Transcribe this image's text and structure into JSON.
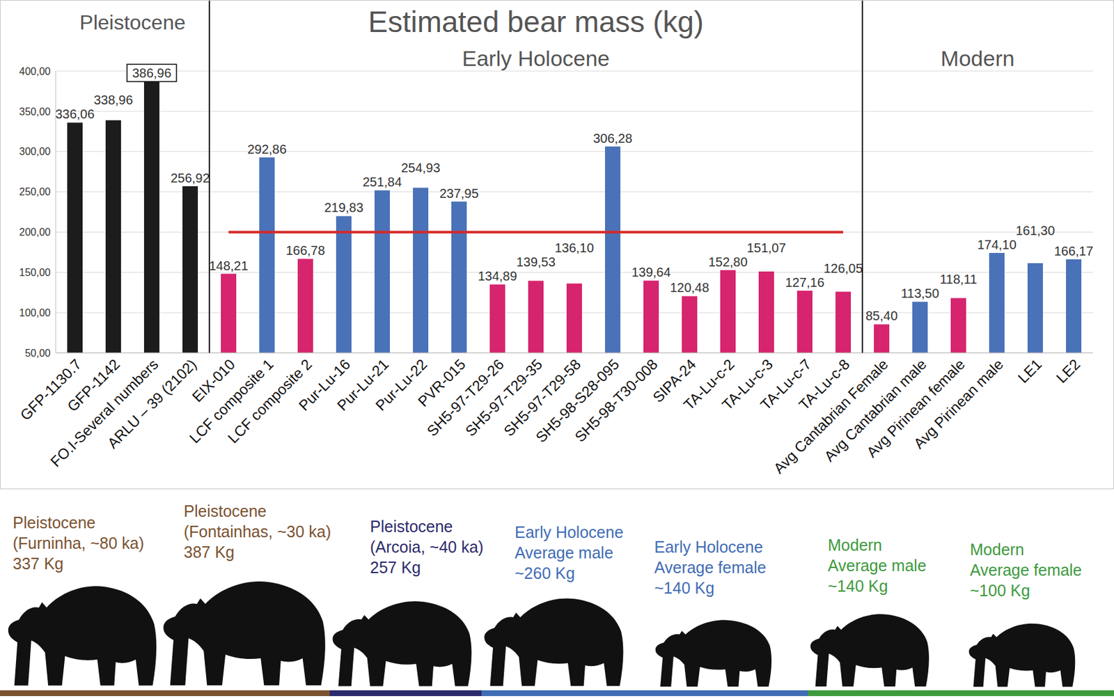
{
  "chart_data": {
    "type": "bar",
    "title": "Estimated bear mass (kg)",
    "categories": [
      "GFP-1130.7",
      "GFP-1142",
      "FO.I-Several numbers",
      "ARLU – 39 (2102)",
      "EIX-010",
      "LCF composite 1",
      "LCF composite 2",
      "Pur-Lu-16",
      "Pur-Lu-21",
      "Pur-Lu-22",
      "PVR-015",
      "SH5-97-T29-26",
      "SH5-97-T29-35",
      "SH5-97-T29-58",
      "SH5-98-S28-095",
      "SH5-98-T30-008",
      "SIPA-24",
      "TA-Lu-c-2",
      "TA-Lu-c-3",
      "TA-Lu-c-7",
      "TA-Lu-c-8",
      "Avg Cantabrian Female",
      "Avg Cantabrian male",
      "Avg Pirinean female",
      "Avg Pirinean male",
      "LE1",
      "LE2"
    ],
    "values": [
      336.06,
      338.96,
      386.96,
      256.92,
      148.21,
      292.86,
      166.78,
      219.83,
      251.84,
      254.93,
      237.95,
      134.89,
      139.53,
      136.1,
      306.28,
      139.64,
      120.48,
      152.8,
      151.07,
      127.16,
      126.05,
      85.4,
      113.5,
      118.11,
      174.1,
      161.3,
      166.17
    ],
    "value_labels": [
      "336,06",
      "338,96",
      "386,96",
      "256,92",
      "148,21",
      "292,86",
      "166,78",
      "219,83",
      "251,84",
      "254,93",
      "237,95",
      "134,89",
      "139,53",
      "136,10",
      "306,28",
      "139,64",
      "120,48",
      "152,80",
      "151,07",
      "127,16",
      "126,05",
      "85,40",
      "113,50",
      "118,11",
      "174,10",
      "161,30",
      "166,17"
    ],
    "colors": [
      "#1c1c1c",
      "#1c1c1c",
      "#1c1c1c",
      "#1c1c1c",
      "#d6246e",
      "#4a72b8",
      "#d6246e",
      "#4a72b8",
      "#4a72b8",
      "#4a72b8",
      "#4a72b8",
      "#d6246e",
      "#d6246e",
      "#d6246e",
      "#4a72b8",
      "#d6246e",
      "#d6246e",
      "#d6246e",
      "#d6246e",
      "#d6246e",
      "#d6246e",
      "#d6246e",
      "#4a72b8",
      "#d6246e",
      "#4a72b8",
      "#4a72b8",
      "#4a72b8"
    ],
    "ylim": [
      50,
      400
    ],
    "yticks": [
      {
        "value": 50,
        "label": "50,00"
      },
      {
        "value": 100,
        "label": "100,00"
      },
      {
        "value": 150,
        "label": "150,00"
      },
      {
        "value": 200,
        "label": "200,00"
      },
      {
        "value": 250,
        "label": "250,00"
      },
      {
        "value": 300,
        "label": "300,00"
      },
      {
        "value": 350,
        "label": "350,00"
      },
      {
        "value": 400,
        "label": "400,00"
      }
    ],
    "grid": true,
    "data_labels": true,
    "sections": [
      {
        "label": "Pleistocene",
        "first": "GFP-1130.7",
        "last": "ARLU – 39 (2102)"
      },
      {
        "label": "Early Holocene",
        "first": "EIX-010",
        "last": "TA-Lu-c-8"
      },
      {
        "label": "Modern",
        "first": "Avg Cantabrian Female",
        "last": "LE2"
      }
    ],
    "reference_line": {
      "y": 200,
      "from": "EIX-010",
      "to": "TA-Lu-c-8",
      "color": "#d62828"
    }
  },
  "illustration": {
    "captions": [
      {
        "lines": [
          "Pleistocene",
          "(Furninha, ~80 ka)",
          "337 Kg"
        ],
        "color": "#7a5230"
      },
      {
        "lines": [
          "Pleistocene",
          "(Fontainhas, ~30 ka)",
          "387 Kg"
        ],
        "color": "#7a5230"
      },
      {
        "lines": [
          "Pleistocene",
          "(Arcoia, ~40 ka)",
          "257 Kg"
        ],
        "color": "#2b2a6b"
      },
      {
        "lines": [
          "Early Holocene",
          "Average male",
          "~260 Kg"
        ],
        "color": "#3f6cb4"
      },
      {
        "lines": [
          "Early Holocene",
          "Average female",
          "~140 Kg"
        ],
        "color": "#3f6cb4"
      },
      {
        "lines": [
          "Modern",
          "Average male",
          "~140 Kg"
        ],
        "color": "#3d9a3d"
      },
      {
        "lines": [
          "Modern",
          "Average female",
          "~100 Kg"
        ],
        "color": "#3d9a3d"
      }
    ]
  }
}
